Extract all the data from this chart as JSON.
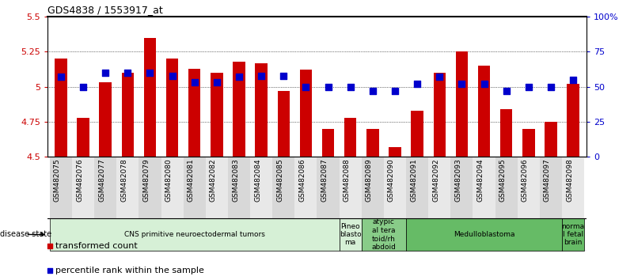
{
  "title": "GDS4838 / 1553917_at",
  "samples": [
    "GSM482075",
    "GSM482076",
    "GSM482077",
    "GSM482078",
    "GSM482079",
    "GSM482080",
    "GSM482081",
    "GSM482082",
    "GSM482083",
    "GSM482084",
    "GSM482085",
    "GSM482086",
    "GSM482087",
    "GSM482088",
    "GSM482089",
    "GSM482090",
    "GSM482091",
    "GSM482092",
    "GSM482093",
    "GSM482094",
    "GSM482095",
    "GSM482096",
    "GSM482097",
    "GSM482098"
  ],
  "transformed_count": [
    5.2,
    4.78,
    5.03,
    5.1,
    5.35,
    5.2,
    5.13,
    5.1,
    5.18,
    5.17,
    4.97,
    5.12,
    4.7,
    4.78,
    4.7,
    4.57,
    4.83,
    5.1,
    5.25,
    5.15,
    4.84,
    4.7,
    4.75,
    5.02
  ],
  "percentile": [
    57,
    50,
    60,
    60,
    60,
    58,
    53,
    53,
    57,
    58,
    58,
    50,
    50,
    50,
    47,
    47,
    52,
    57,
    52,
    52,
    47,
    50,
    50,
    55
  ],
  "bar_color": "#cc0000",
  "dot_color": "#0000cc",
  "ylim_left": [
    4.5,
    5.5
  ],
  "ylim_right": [
    0,
    100
  ],
  "yticks_left": [
    4.5,
    4.75,
    5.0,
    5.25,
    5.5
  ],
  "yticks_right": [
    0,
    25,
    50,
    75,
    100
  ],
  "ytick_labels_left": [
    "4.5",
    "4.75",
    "5",
    "5.25",
    "5.5"
  ],
  "ytick_labels_right": [
    "0",
    "25",
    "50",
    "75",
    "100%"
  ],
  "disease_groups": [
    {
      "label": "CNS primitive neuroectodermal tumors",
      "start": 0,
      "end": 13,
      "color": "#d6f0d6"
    },
    {
      "label": "Pineo\nblasto\nma",
      "start": 13,
      "end": 14,
      "color": "#d6f0d6"
    },
    {
      "label": "atypic\nal tera\ntoid/rh\nabdoid",
      "start": 14,
      "end": 16,
      "color": "#88cc88"
    },
    {
      "label": "Medulloblastoma",
      "start": 16,
      "end": 23,
      "color": "#66bb66"
    },
    {
      "label": "norma\nl fetal\nbrain",
      "start": 23,
      "end": 24,
      "color": "#66bb66"
    }
  ],
  "disease_state_label": "disease state",
  "legend_items": [
    {
      "color": "#cc0000",
      "label": "transformed count"
    },
    {
      "color": "#0000cc",
      "label": "percentile rank within the sample"
    }
  ],
  "bar_width": 0.55,
  "dot_size": 35,
  "background_color": "#ffffff",
  "tick_color_left": "#cc0000",
  "tick_color_right": "#0000cc"
}
